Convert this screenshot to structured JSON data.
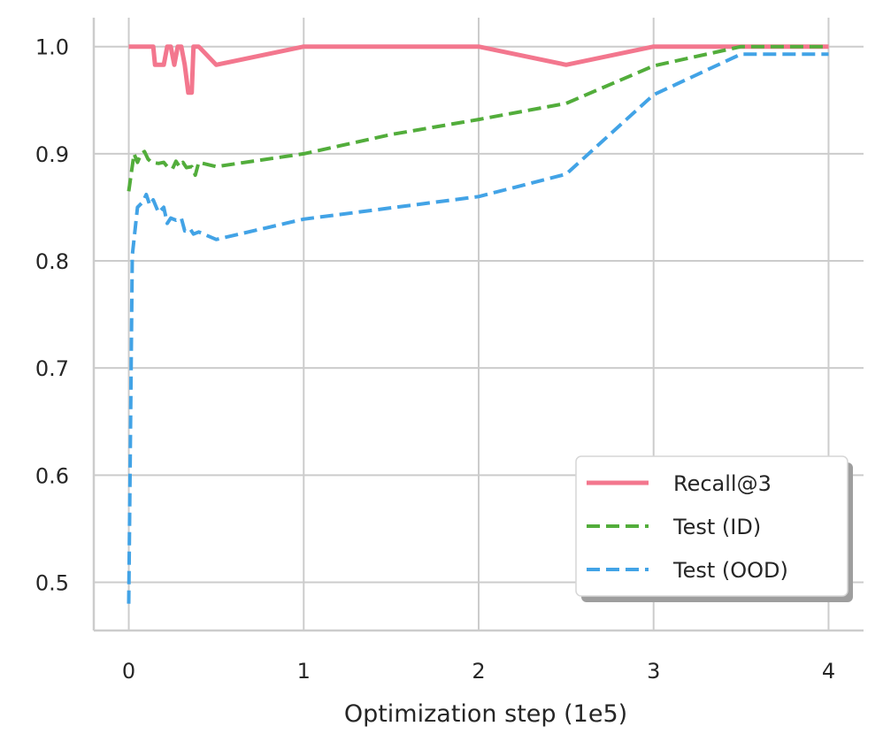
{
  "chart_data": {
    "type": "line",
    "title": "",
    "xlabel": "Optimization step (1e5)",
    "ylabel": "",
    "xlim": [
      -0.2,
      4.2
    ],
    "ylim": [
      0.455,
      1.027
    ],
    "xticks": [
      0,
      1,
      2,
      3,
      4
    ],
    "yticks": [
      0.5,
      0.6,
      0.7,
      0.8,
      0.9,
      1.0
    ],
    "xtick_labels": [
      "0",
      "1",
      "2",
      "3",
      "4"
    ],
    "ytick_labels": [
      "0.5",
      "0.6",
      "0.7",
      "0.8",
      "0.9",
      "1.0"
    ],
    "grid": true,
    "legend_position": "lower-right",
    "series": [
      {
        "name": "Recall@3",
        "color": "#f3778e",
        "style": "solid",
        "points": [
          [
            0.0,
            1.0
          ],
          [
            0.14,
            1.0
          ],
          [
            0.15,
            0.983
          ],
          [
            0.2,
            0.983
          ],
          [
            0.22,
            1.0
          ],
          [
            0.24,
            1.0
          ],
          [
            0.26,
            0.983
          ],
          [
            0.28,
            1.0
          ],
          [
            0.3,
            1.0
          ],
          [
            0.32,
            0.983
          ],
          [
            0.34,
            0.957
          ],
          [
            0.36,
            0.957
          ],
          [
            0.37,
            1.0
          ],
          [
            0.4,
            1.0
          ],
          [
            0.5,
            0.983
          ],
          [
            1.0,
            1.0
          ],
          [
            2.0,
            1.0
          ],
          [
            2.5,
            0.983
          ],
          [
            3.0,
            1.0
          ],
          [
            3.5,
            1.0
          ],
          [
            4.0,
            1.0
          ]
        ]
      },
      {
        "name": "Test (ID)",
        "color": "#52ad3b",
        "style": "dashed",
        "points": [
          [
            0.0,
            0.865
          ],
          [
            0.03,
            0.9
          ],
          [
            0.05,
            0.892
          ],
          [
            0.07,
            0.9
          ],
          [
            0.09,
            0.902
          ],
          [
            0.11,
            0.895
          ],
          [
            0.13,
            0.892
          ],
          [
            0.17,
            0.891
          ],
          [
            0.2,
            0.892
          ],
          [
            0.22,
            0.888
          ],
          [
            0.25,
            0.886
          ],
          [
            0.27,
            0.893
          ],
          [
            0.29,
            0.888
          ],
          [
            0.31,
            0.892
          ],
          [
            0.33,
            0.887
          ],
          [
            0.36,
            0.888
          ],
          [
            0.38,
            0.88
          ],
          [
            0.4,
            0.892
          ],
          [
            0.5,
            0.888
          ],
          [
            1.0,
            0.9
          ],
          [
            1.5,
            0.918
          ],
          [
            2.0,
            0.932
          ],
          [
            2.5,
            0.947
          ],
          [
            3.0,
            0.982
          ],
          [
            3.5,
            1.0
          ],
          [
            4.0,
            1.0
          ]
        ]
      },
      {
        "name": "Test (OOD)",
        "color": "#42a3e6",
        "style": "dashed",
        "points": [
          [
            0.0,
            0.48
          ],
          [
            0.02,
            0.805
          ],
          [
            0.05,
            0.85
          ],
          [
            0.08,
            0.855
          ],
          [
            0.1,
            0.862
          ],
          [
            0.12,
            0.852
          ],
          [
            0.14,
            0.857
          ],
          [
            0.17,
            0.845
          ],
          [
            0.2,
            0.85
          ],
          [
            0.22,
            0.835
          ],
          [
            0.24,
            0.84
          ],
          [
            0.27,
            0.838
          ],
          [
            0.3,
            0.84
          ],
          [
            0.32,
            0.828
          ],
          [
            0.35,
            0.83
          ],
          [
            0.37,
            0.825
          ],
          [
            0.4,
            0.827
          ],
          [
            0.5,
            0.82
          ],
          [
            1.0,
            0.839
          ],
          [
            2.0,
            0.86
          ],
          [
            2.5,
            0.881
          ],
          [
            3.0,
            0.955
          ],
          [
            3.5,
            0.993
          ],
          [
            4.0,
            0.993
          ]
        ]
      }
    ]
  }
}
